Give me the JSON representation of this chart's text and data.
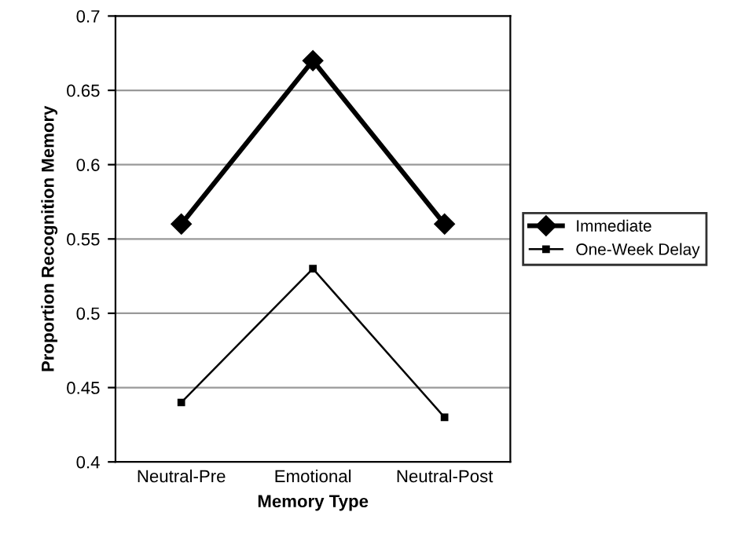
{
  "chart_data": {
    "type": "line",
    "xlabel": "Memory Type",
    "ylabel": "Proportion Recognition Memory",
    "categories": [
      "Neutral-Pre",
      "Emotional",
      "Neutral-Post"
    ],
    "series": [
      {
        "name": "Immediate",
        "color": "#000000",
        "values": [
          0.56,
          0.67,
          0.56
        ],
        "marker": "diamond",
        "line_style": "solid"
      },
      {
        "name": "One-Week Delay",
        "color": "#000000",
        "values": [
          0.44,
          0.53,
          0.43
        ],
        "marker": "square",
        "line_style": "solid"
      }
    ],
    "ylim": [
      0.4,
      0.7
    ],
    "yticks": [
      0.4,
      0.45,
      0.5,
      0.55,
      0.6,
      0.65,
      0.7
    ],
    "grid": "y",
    "legend": "right"
  }
}
